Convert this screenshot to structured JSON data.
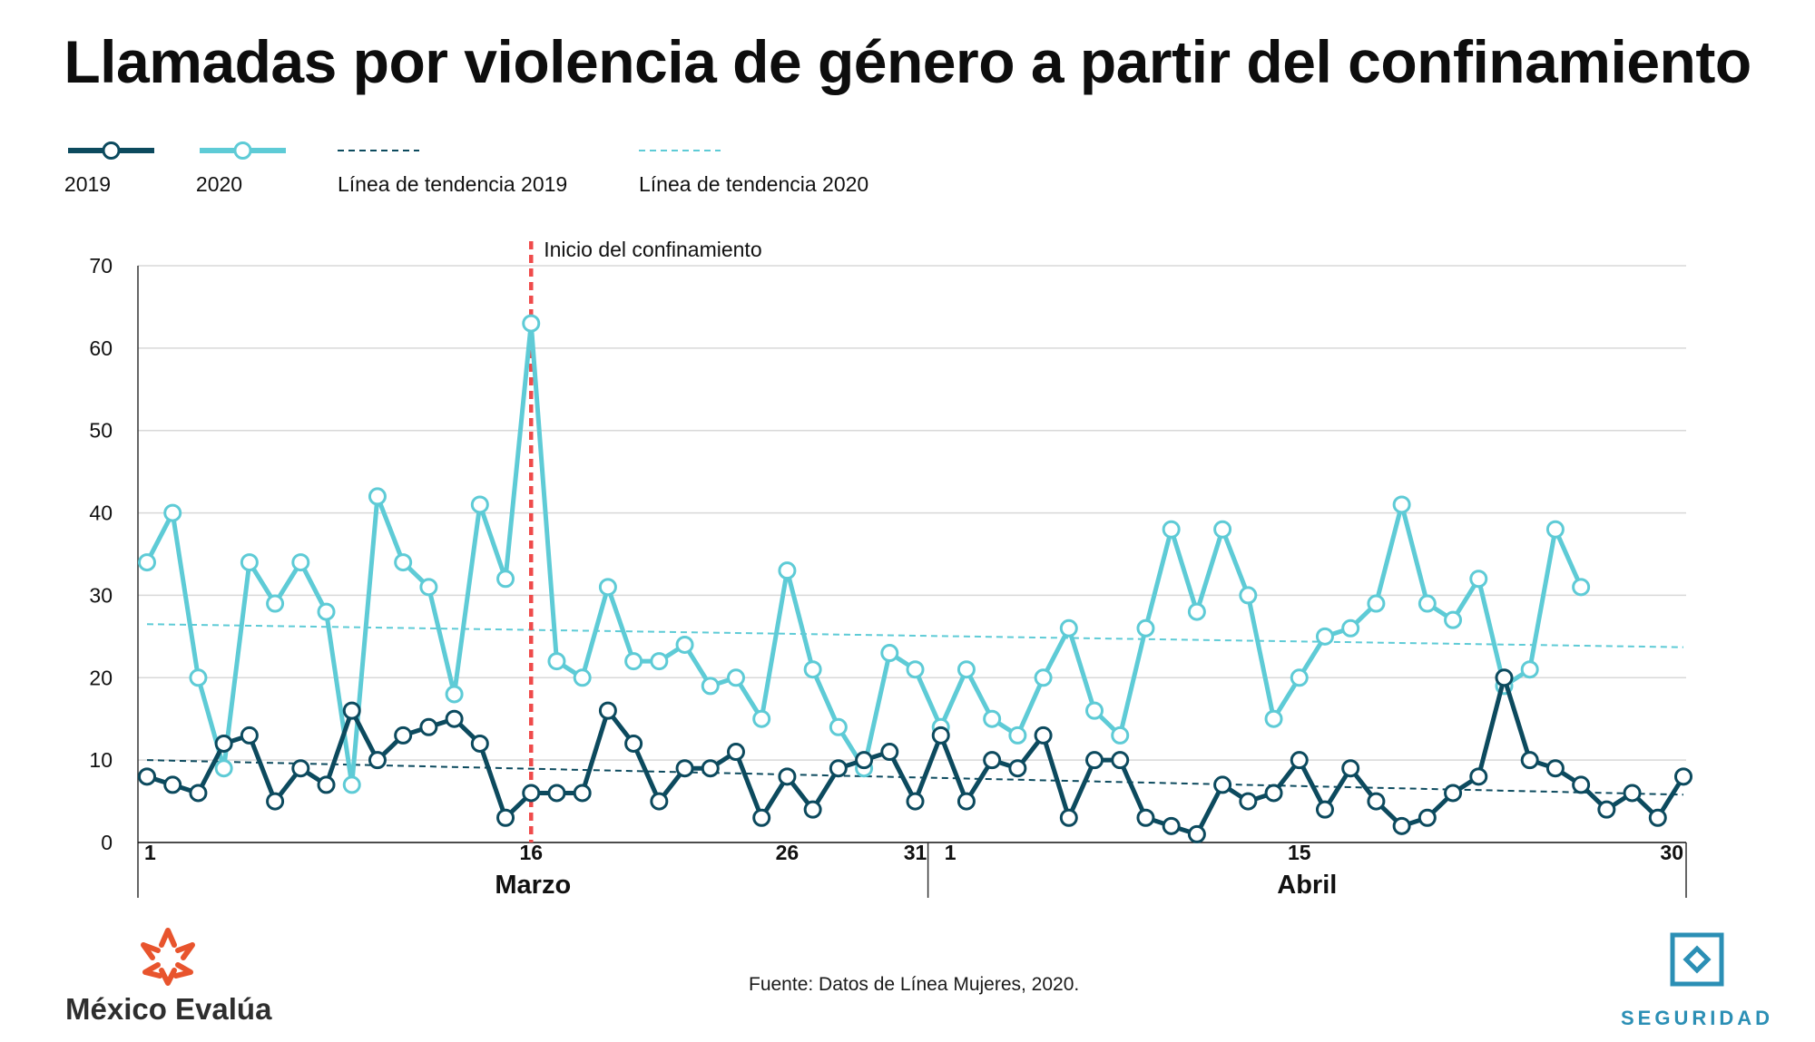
{
  "title": "Llamadas por violencia de género a partir del confinamiento",
  "source": "Fuente: Datos de Línea Mujeres, 2020.",
  "brand": "México Evalúa",
  "section": "SEGURIDAD",
  "colors": {
    "c2019": "#0c4a5e",
    "c2020": "#5ecbd6",
    "lockdown": "#ef4b4b",
    "grid": "#d8d8d8"
  },
  "icons": {
    "brand_logo": "star-burst-logo-icon",
    "section_logo": "diamond-square-icon"
  },
  "chart_data": {
    "type": "line",
    "legend": [
      {
        "label": "2019",
        "style": "line-marker",
        "color": "#0c4a5e"
      },
      {
        "label": "2020",
        "style": "line-marker",
        "color": "#5ecbd6"
      },
      {
        "label": "Línea de tendencia 2019",
        "style": "dashed",
        "color": "#0c4a5e"
      },
      {
        "label": "Línea de tendencia 2020",
        "style": "dashed",
        "color": "#5ecbd6"
      }
    ],
    "legend_position": "top-left",
    "ylim": [
      0,
      70
    ],
    "yticks": [
      0,
      10,
      20,
      30,
      40,
      50,
      60,
      70
    ],
    "grid": true,
    "x_count": 61,
    "x_tick_labels": [
      {
        "index": 0,
        "label": "1"
      },
      {
        "index": 15,
        "label": "16"
      },
      {
        "index": 25,
        "label": "26"
      },
      {
        "index": 30,
        "label": "31"
      },
      {
        "index": 31,
        "label": "1"
      },
      {
        "index": 45,
        "label": "15"
      },
      {
        "index": 60,
        "label": "30"
      }
    ],
    "month_groups": [
      {
        "label": "Marzo",
        "start": 0,
        "end": 30
      },
      {
        "label": "Abril",
        "start": 31,
        "end": 60
      }
    ],
    "annotation": {
      "label": "Inicio del confinamiento",
      "index": 15
    },
    "series": [
      {
        "name": "2019",
        "values": [
          8,
          7,
          6,
          12,
          13,
          5,
          9,
          7,
          16,
          10,
          13,
          14,
          15,
          12,
          3,
          6,
          6,
          6,
          16,
          12,
          5,
          9,
          9,
          11,
          3,
          8,
          4,
          9,
          10,
          11,
          5,
          13,
          5,
          10,
          9,
          13,
          3,
          10,
          10,
          3,
          2,
          1,
          7,
          5,
          6,
          10,
          4,
          9,
          5,
          2,
          3,
          6,
          8,
          20,
          10,
          9,
          7,
          4,
          6,
          3,
          8
        ]
      },
      {
        "name": "2020",
        "values": [
          34,
          40,
          20,
          9,
          34,
          29,
          34,
          28,
          7,
          42,
          34,
          31,
          18,
          41,
          32,
          63,
          22,
          20,
          31,
          22,
          22,
          24,
          19,
          20,
          15,
          33,
          21,
          14,
          9,
          23,
          21,
          14,
          21,
          15,
          13,
          20,
          26,
          16,
          13,
          26,
          38,
          28,
          38,
          30,
          15,
          20,
          25,
          26,
          29,
          41,
          29,
          27,
          32,
          19,
          21,
          38,
          31
        ]
      }
    ],
    "trendlines": [
      {
        "name": "Línea de tendencia 2019",
        "start": 10.0,
        "end": 5.8
      },
      {
        "name": "Línea de tendencia 2020",
        "start": 26.5,
        "end": 23.7
      }
    ]
  }
}
